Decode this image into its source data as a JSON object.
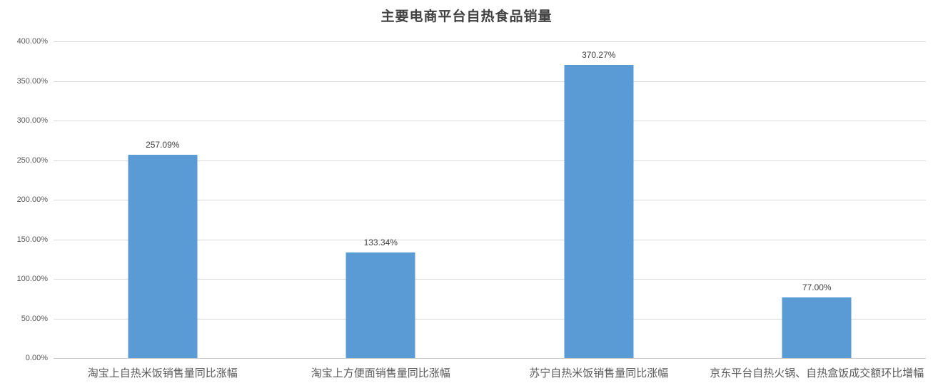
{
  "chart_data": {
    "type": "bar",
    "title": "主要电商平台自热食品销量",
    "categories": [
      "淘宝上自热米饭销售量同比涨幅",
      "淘宝上方便面销售量同比涨幅",
      "苏宁自热米饭销售量同比涨幅",
      "京东平台自热火锅、自热盒饭成交额环比增幅"
    ],
    "values": [
      257.09,
      133.34,
      370.27,
      77.0
    ],
    "value_labels": [
      "257.09%",
      "133.34%",
      "370.27%",
      "77.00%"
    ],
    "y_tick_labels": [
      "0.00%",
      "50.00%",
      "100.00%",
      "150.00%",
      "200.00%",
      "250.00%",
      "300.00%",
      "350.00%",
      "400.00%"
    ],
    "xlabel": "",
    "ylabel": "",
    "ylim": [
      0,
      400
    ],
    "tick_step": 50,
    "grid": true,
    "legend_position": "none",
    "colors": {
      "bar": "#5b9bd5",
      "gridline": "#d9d9d9",
      "axis_line": "#c6c6c6",
      "title": "#404040",
      "tick_label": "#595959",
      "value_label": "#404040",
      "category_label": "#595959"
    }
  }
}
